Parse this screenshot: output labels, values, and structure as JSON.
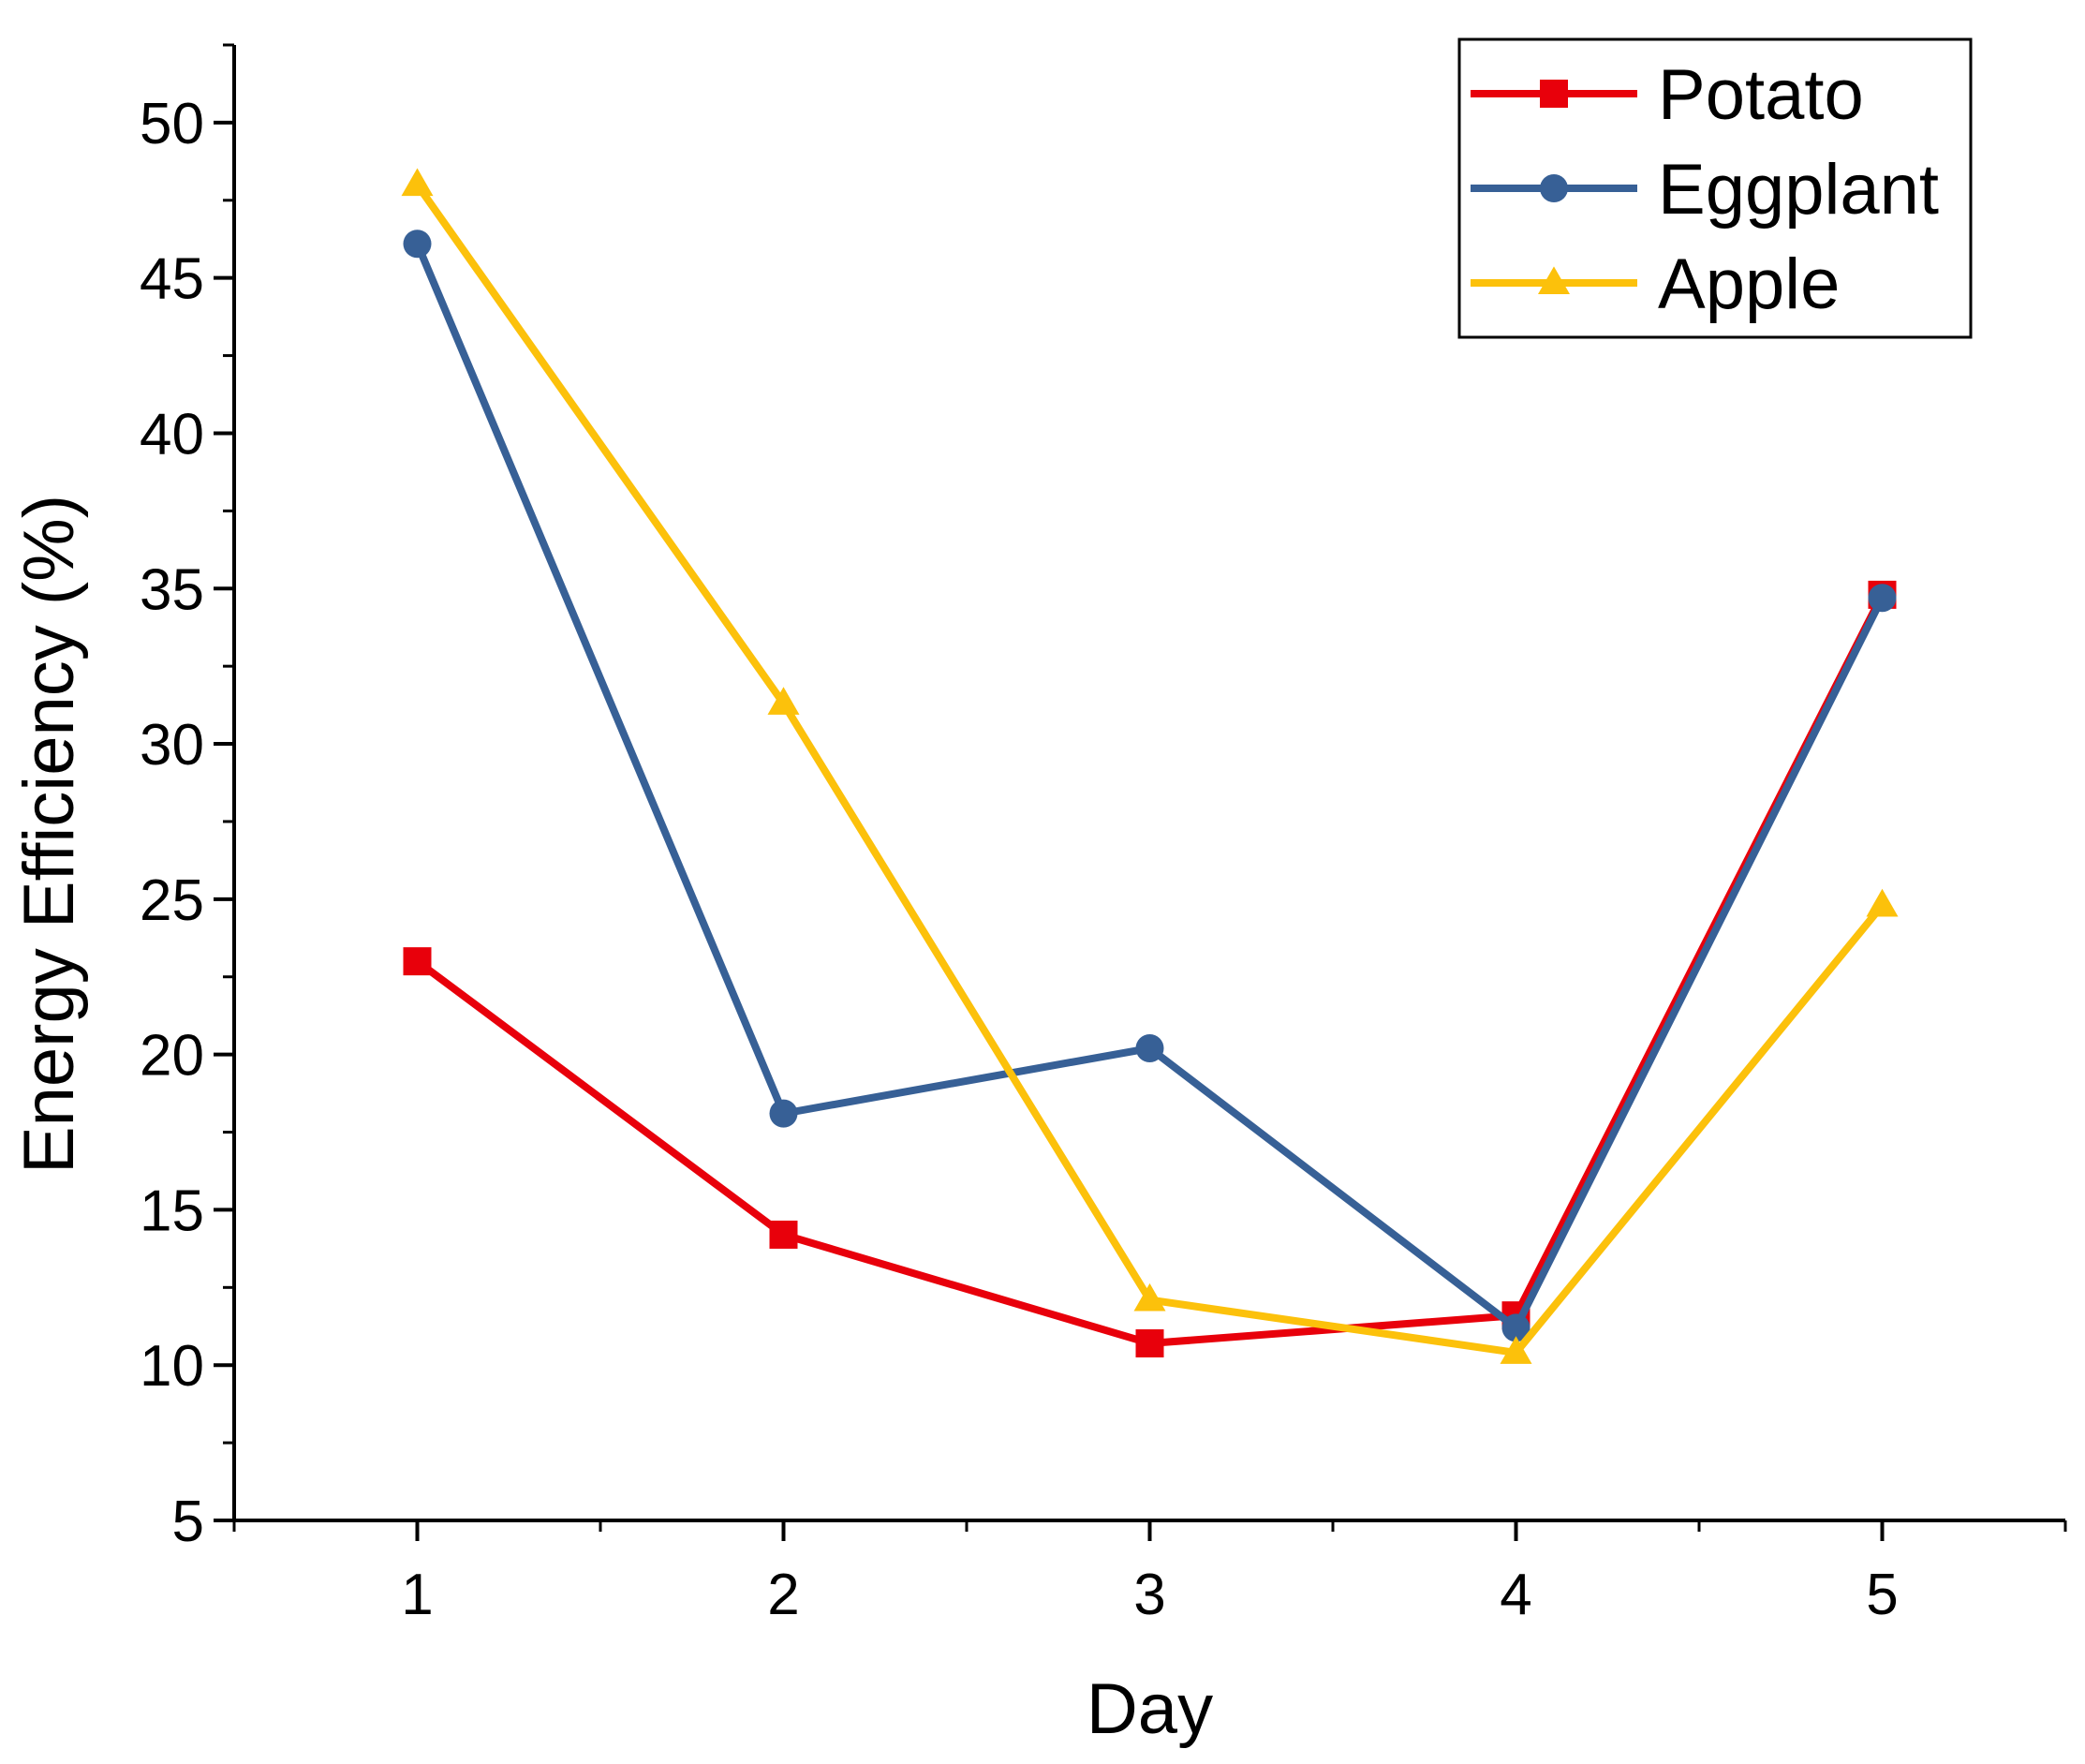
{
  "chart_data": {
    "type": "line",
    "title": "",
    "xlabel": "Day",
    "ylabel": "Energy Efficiency (%)",
    "x": [
      1,
      2,
      3,
      4,
      5
    ],
    "xlim": [
      0.5,
      5.5
    ],
    "ylim": [
      5,
      52.5
    ],
    "xticks": [
      1,
      2,
      3,
      4,
      5
    ],
    "yticks": [
      5,
      10,
      15,
      20,
      25,
      30,
      35,
      40,
      45,
      50
    ],
    "grid": false,
    "legend_position": "top-right",
    "series": [
      {
        "name": "Potato",
        "marker": "square",
        "color": "#e8000b",
        "values": [
          23.0,
          14.2,
          10.7,
          11.6,
          34.8
        ]
      },
      {
        "name": "Eggplant",
        "marker": "circle",
        "color": "#376096",
        "values": [
          46.1,
          18.1,
          20.2,
          11.2,
          34.7
        ]
      },
      {
        "name": "Apple",
        "marker": "triangle",
        "color": "#fcc10b",
        "values": [
          48.0,
          31.3,
          12.1,
          10.4,
          24.8
        ]
      }
    ]
  }
}
